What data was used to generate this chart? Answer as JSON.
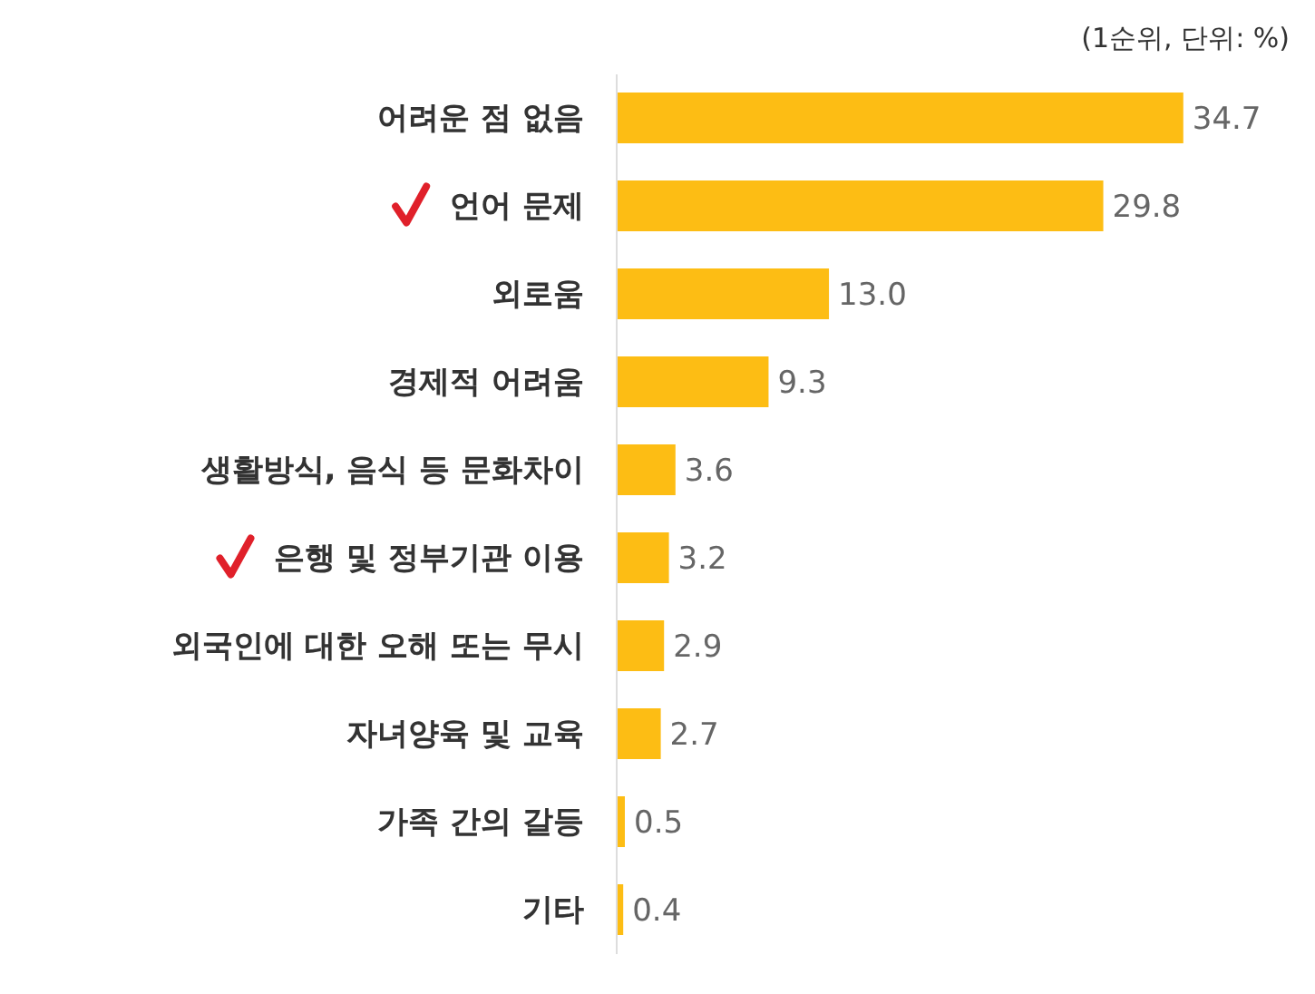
{
  "chart_data": {
    "type": "bar",
    "orientation": "horizontal",
    "subtitle": "(1순위, 단위: %)",
    "categories": [
      "어려운 점 없음",
      "언어 문제",
      "외로움",
      "경제적 어려움",
      "생활방식, 음식 등 문화차이",
      "은행 및 정부기관 이용",
      "외국인에 대한 오해 또는 무시",
      "자녀양육 및 교육",
      "가족 간의 갈등",
      "기타"
    ],
    "values": [
      34.7,
      29.8,
      13.0,
      9.3,
      3.6,
      3.2,
      2.9,
      2.7,
      0.5,
      0.4
    ],
    "value_labels": [
      "34.7",
      "29.8",
      "13.0",
      "9.3",
      "3.6",
      "3.2",
      "2.9",
      "2.7",
      "0.5",
      "0.4"
    ],
    "color": "#fdbd14"
  }
}
